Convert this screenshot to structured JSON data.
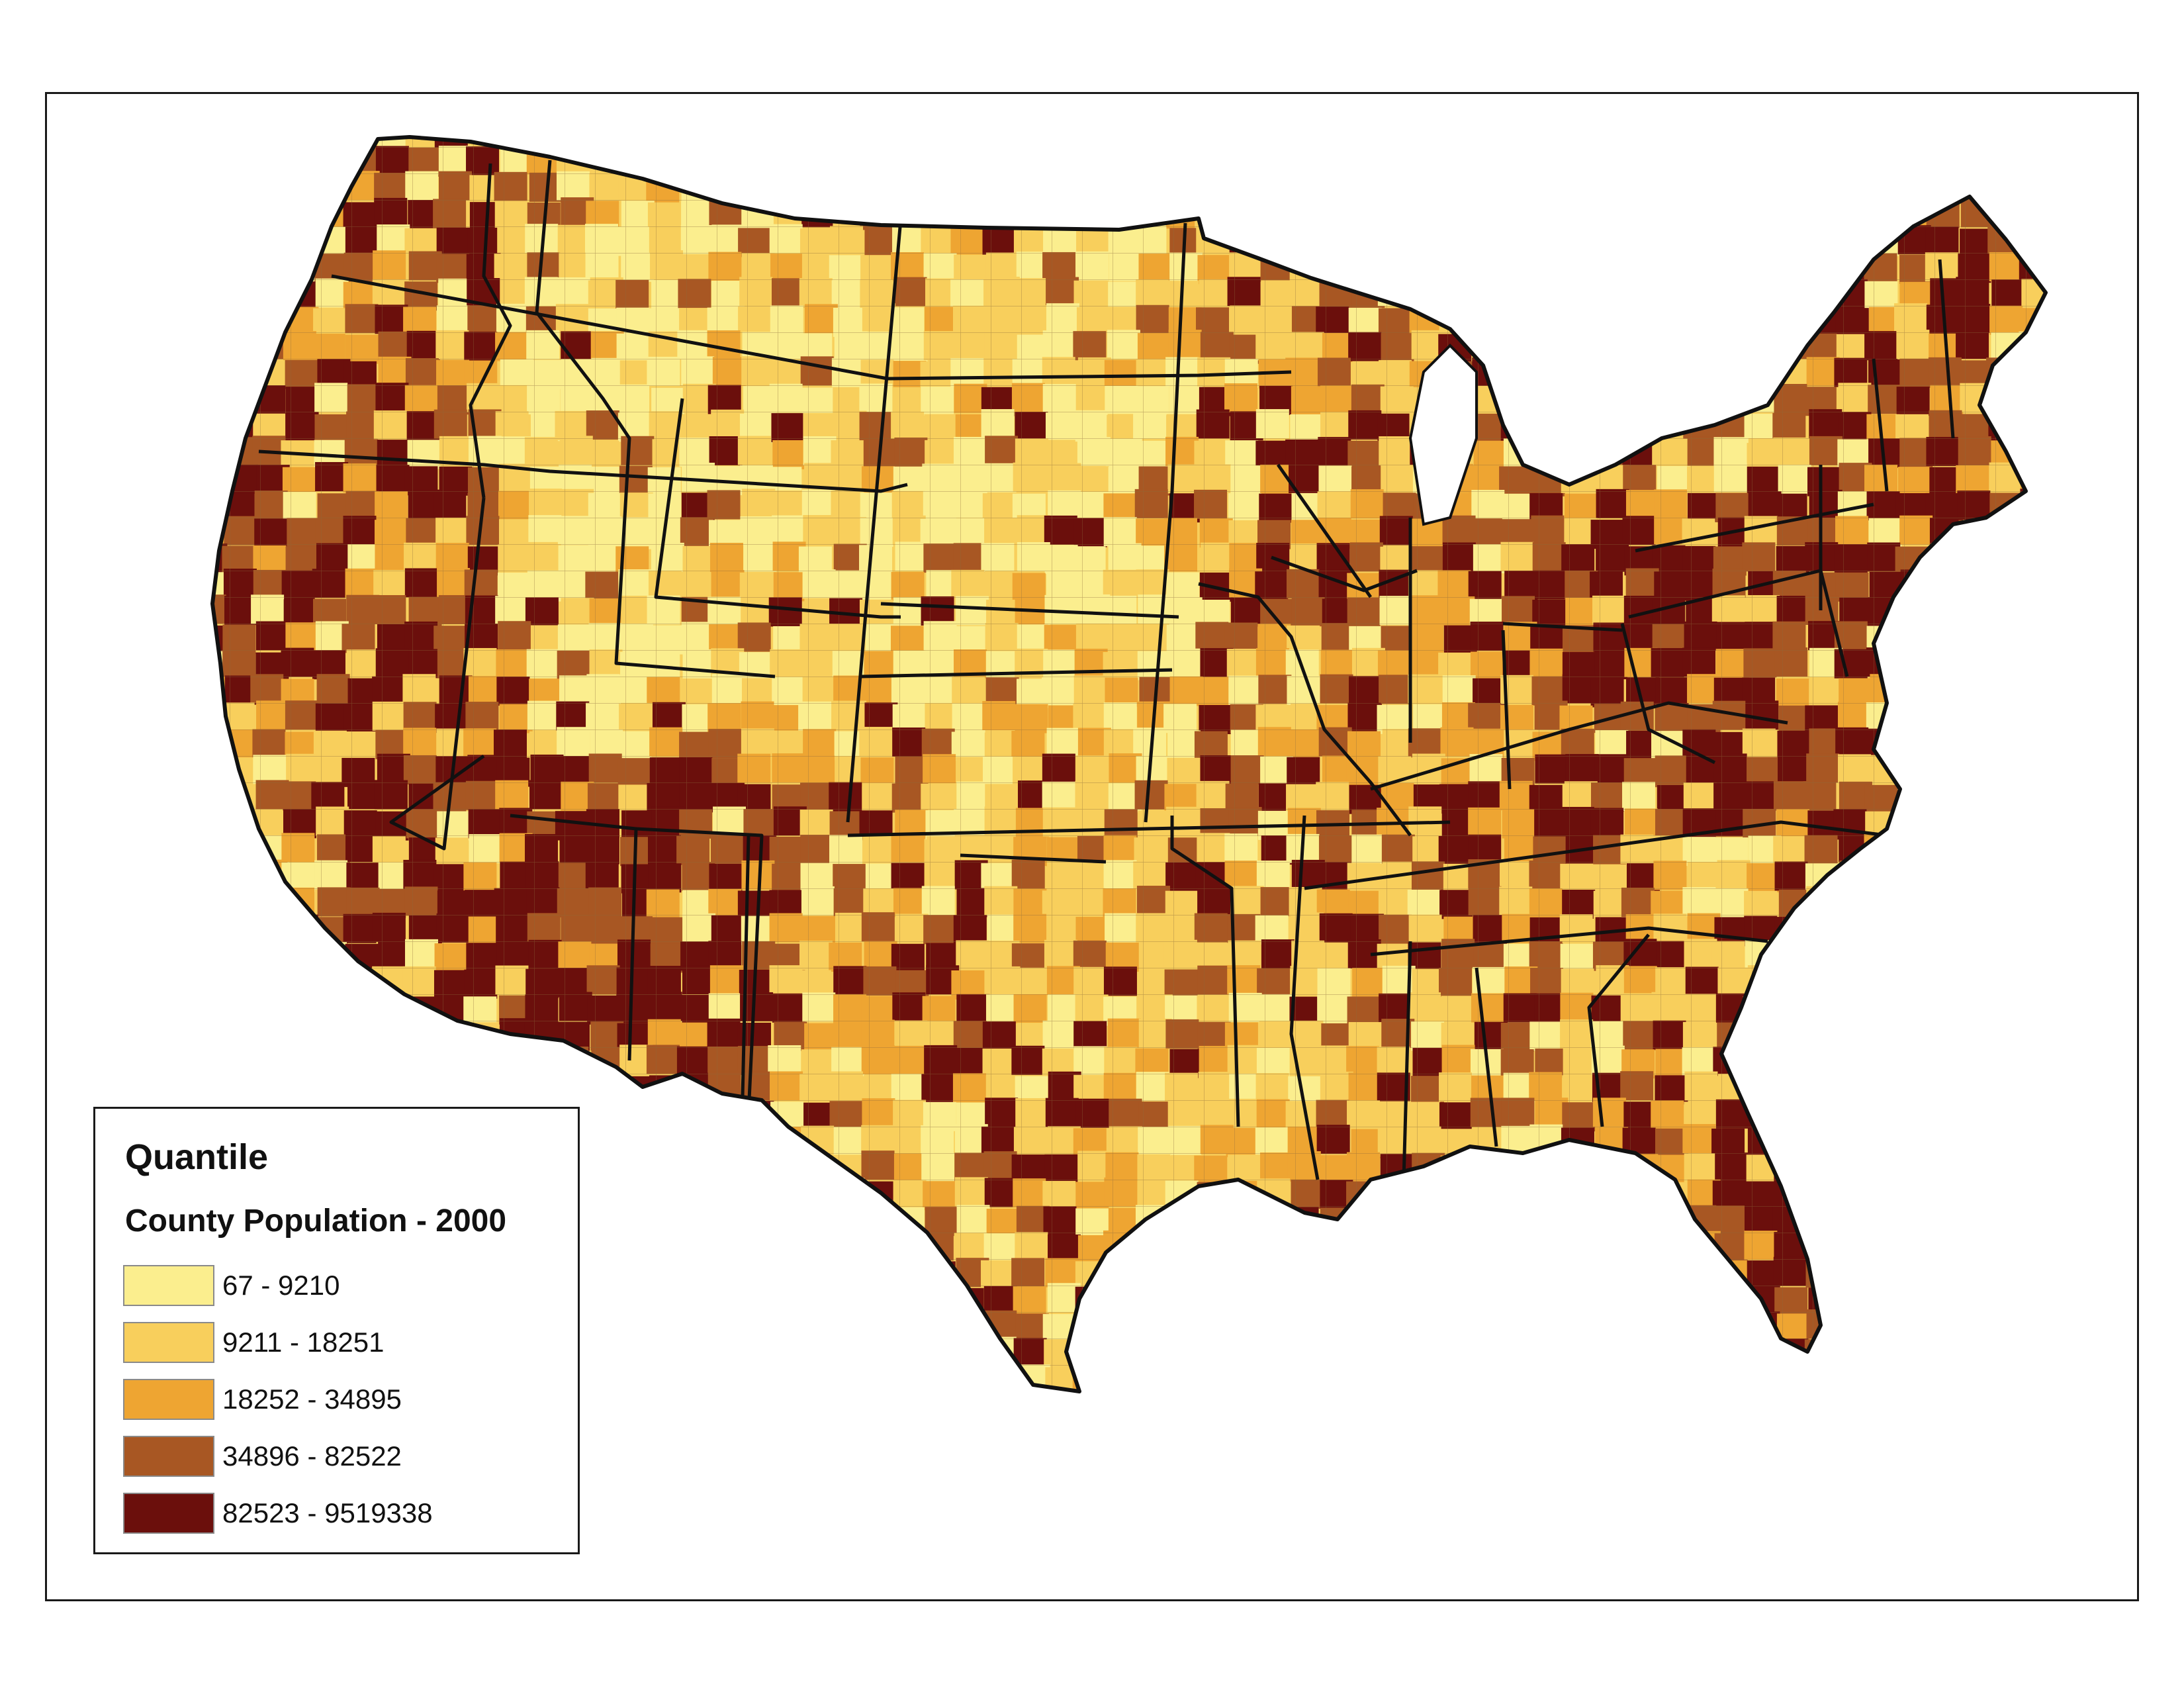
{
  "legend": {
    "title": "Quantile",
    "subtitle": "County Population - 2000",
    "classes": [
      {
        "label": "67 - 9210",
        "min": 67,
        "max": 9210,
        "color": "#fbee8e"
      },
      {
        "label": "9211 - 18251",
        "min": 9211,
        "max": 18251,
        "color": "#f8cf5c"
      },
      {
        "label": "18252 - 34895",
        "min": 18252,
        "max": 34895,
        "color": "#eea532"
      },
      {
        "label": "34896 - 82522",
        "min": 34896,
        "max": 82522,
        "color": "#a85723"
      },
      {
        "label": "82523 - 9519338",
        "min": 82523,
        "max": 9519338,
        "color": "#6b0f0c"
      }
    ]
  },
  "colors": {
    "state_border": "#111111",
    "county_border": "#8a6a3a",
    "frame_border": "#1a1a1a",
    "background": "#ffffff"
  },
  "map": {
    "region": "Contiguous United States",
    "unit": "county",
    "classification": "quantile"
  }
}
